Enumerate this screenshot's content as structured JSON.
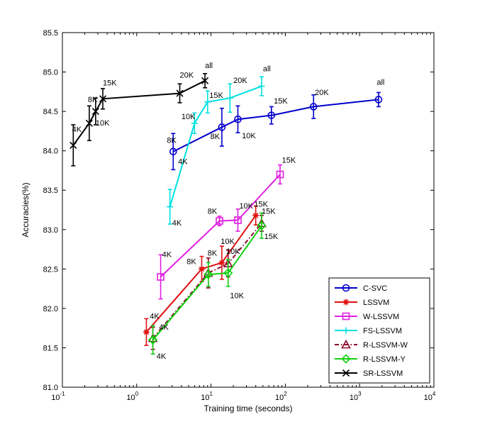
{
  "chart_data": {
    "type": "line",
    "xlabel": "Training time (seconds)",
    "ylabel": "Accuracies(%)",
    "xscale": "log",
    "xlim": [
      0.1,
      10000
    ],
    "ylim": [
      81.0,
      85.5
    ],
    "x_ticks": [
      0.1,
      1,
      10,
      100,
      1000,
      10000
    ],
    "x_tick_labels": [
      {
        "base": "10",
        "exp": "-1"
      },
      {
        "base": "10",
        "exp": "0"
      },
      {
        "base": "10",
        "exp": "1"
      },
      {
        "base": "10",
        "exp": "2"
      },
      {
        "base": "10",
        "exp": "3"
      },
      {
        "base": "10",
        "exp": "4"
      }
    ],
    "y_ticks": [
      81.0,
      81.5,
      82.0,
      82.5,
      83.0,
      83.5,
      84.0,
      84.5,
      85.0,
      85.5
    ],
    "y_tick_labels": [
      "81.0",
      "81.5",
      "82.0",
      "82.5",
      "83.0",
      "83.5",
      "84.0",
      "84.5",
      "85.0",
      "85.5"
    ],
    "grid": false,
    "legend_position": "bottom-right",
    "series": [
      {
        "name": "C-SVC",
        "color": "#0000cc",
        "marker": "circle",
        "dash": "solid",
        "points": [
          {
            "x": 3.1,
            "y": 83.99,
            "err": 0.23
          },
          {
            "x": 14,
            "y": 84.3,
            "err": 0.24
          },
          {
            "x": 23,
            "y": 84.4,
            "err": 0.17
          },
          {
            "x": 65,
            "y": 84.45,
            "err": 0.11
          },
          {
            "x": 240,
            "y": 84.56,
            "err": 0.15
          },
          {
            "x": 1800,
            "y": 84.65,
            "err": 0.09
          }
        ]
      },
      {
        "name": "LSSVM",
        "color": "#e01010",
        "marker": "star",
        "dash": "solid",
        "points": [
          {
            "x": 1.35,
            "y": 81.7,
            "err": 0.17
          },
          {
            "x": 7.5,
            "y": 82.5,
            "err": 0.16
          },
          {
            "x": 14,
            "y": 82.58,
            "err": 0.21
          },
          {
            "x": 40,
            "y": 83.18,
            "err": 0.12
          }
        ]
      },
      {
        "name": "W-LSSVM",
        "color": "#e020e0",
        "marker": "square",
        "dash": "solid",
        "points": [
          {
            "x": 2.1,
            "y": 82.4,
            "err": 0.28
          },
          {
            "x": 13,
            "y": 83.11,
            "err": 0.06
          },
          {
            "x": 23,
            "y": 83.12,
            "err": 0.14
          },
          {
            "x": 85,
            "y": 83.7,
            "err": 0.12
          }
        ]
      },
      {
        "name": "FS-LSSVM",
        "color": "#00e0e0",
        "marker": "plus",
        "dash": "solid",
        "points": [
          {
            "x": 2.8,
            "y": 83.29,
            "err": 0.22
          },
          {
            "x": 6.0,
            "y": 84.35,
            "err": 0.13
          },
          {
            "x": 9.0,
            "y": 84.62,
            "err": 0.14
          },
          {
            "x": 18,
            "y": 84.67,
            "err": 0.18
          },
          {
            "x": 48,
            "y": 84.82,
            "err": 0.12
          }
        ]
      },
      {
        "name": "R-LSSVM-W",
        "color": "#8b0a2a",
        "marker": "triangle",
        "dash": "dashdot",
        "points": [
          {
            "x": 1.65,
            "y": 81.62,
            "err": 0.14
          },
          {
            "x": 9.2,
            "y": 82.45,
            "err": 0.19
          },
          {
            "x": 17,
            "y": 82.57,
            "err": 0.17
          },
          {
            "x": 48,
            "y": 83.08,
            "err": 0.1
          }
        ]
      },
      {
        "name": "R-LSSVM-Y",
        "color": "#10d010",
        "marker": "diamond",
        "dash": "solid",
        "points": [
          {
            "x": 1.65,
            "y": 81.6,
            "err": 0.18
          },
          {
            "x": 9.2,
            "y": 82.43,
            "err": 0.15
          },
          {
            "x": 17,
            "y": 82.45,
            "err": 0.17
          },
          {
            "x": 48,
            "y": 83.05,
            "err": 0.16
          }
        ]
      },
      {
        "name": "SR-LSSVM",
        "color": "#000000",
        "marker": "x",
        "dash": "solid",
        "points": [
          {
            "x": 0.14,
            "y": 84.07,
            "err": 0.26
          },
          {
            "x": 0.23,
            "y": 84.35,
            "err": 0.22
          },
          {
            "x": 0.28,
            "y": 84.5,
            "err": 0.17
          },
          {
            "x": 0.35,
            "y": 84.66,
            "err": 0.13
          },
          {
            "x": 3.8,
            "y": 84.73,
            "err": 0.12
          },
          {
            "x": 8.3,
            "y": 84.89,
            "err": 0.09
          }
        ]
      }
    ],
    "annotations": [
      {
        "text": "all",
        "x": 8.3,
        "y": 85.05,
        "anchor": "start"
      },
      {
        "text": "20K",
        "x": 3.8,
        "y": 84.93,
        "anchor": "start"
      },
      {
        "text": "15K",
        "x": 0.35,
        "y": 84.83,
        "anchor": "start"
      },
      {
        "text": "8K",
        "x": 0.22,
        "y": 84.62,
        "anchor": "start"
      },
      {
        "text": "10K",
        "x": 0.28,
        "y": 84.32,
        "anchor": "start"
      },
      {
        "text": "4K",
        "x": 0.135,
        "y": 84.24,
        "anchor": "start"
      },
      {
        "text": "all",
        "x": 50,
        "y": 85.01,
        "anchor": "start"
      },
      {
        "text": "20K",
        "x": 20,
        "y": 84.86,
        "anchor": "start"
      },
      {
        "text": "15K",
        "x": 9.5,
        "y": 84.67,
        "anchor": "start"
      },
      {
        "text": "10K",
        "x": 4.0,
        "y": 84.4,
        "anchor": "start"
      },
      {
        "text": "8K",
        "x": 2.55,
        "y": 84.1,
        "anchor": "start"
      },
      {
        "text": "4K",
        "x": 3.0,
        "y": 83.05,
        "anchor": "start"
      },
      {
        "text": "all",
        "x": 1700,
        "y": 84.84,
        "anchor": "start"
      },
      {
        "text": "20K",
        "x": 250,
        "y": 84.71,
        "anchor": "start"
      },
      {
        "text": "15K",
        "x": 70,
        "y": 84.6,
        "anchor": "start"
      },
      {
        "text": "10K",
        "x": 26,
        "y": 84.16,
        "anchor": "start"
      },
      {
        "text": "8K",
        "x": 9.8,
        "y": 84.15,
        "anchor": "start"
      },
      {
        "text": "4K",
        "x": 3.6,
        "y": 83.83,
        "anchor": "start"
      },
      {
        "text": "15K",
        "x": 90,
        "y": 83.85,
        "anchor": "start"
      },
      {
        "text": "10K",
        "x": 24,
        "y": 83.27,
        "anchor": "start"
      },
      {
        "text": "8K",
        "x": 9.0,
        "y": 83.2,
        "anchor": "start"
      },
      {
        "text": "4K",
        "x": 2.2,
        "y": 82.65,
        "anchor": "start"
      },
      {
        "text": "15K",
        "x": 38,
        "y": 83.29,
        "anchor": "start"
      },
      {
        "text": "15K",
        "x": 48,
        "y": 83.2,
        "anchor": "start"
      },
      {
        "text": "10K",
        "x": 13.5,
        "y": 82.82,
        "anchor": "start"
      },
      {
        "text": "10K",
        "x": 16,
        "y": 82.69,
        "anchor": "start"
      },
      {
        "text": "8K",
        "x": 9.0,
        "y": 82.67,
        "anchor": "start"
      },
      {
        "text": "8K",
        "x": 4.7,
        "y": 82.56,
        "anchor": "start"
      },
      {
        "text": "10K",
        "x": 18,
        "y": 82.13,
        "anchor": "start"
      },
      {
        "text": "15K",
        "x": 52,
        "y": 82.88,
        "anchor": "start"
      },
      {
        "text": "4K",
        "x": 1.5,
        "y": 81.87,
        "anchor": "start"
      },
      {
        "text": "4K",
        "x": 2.0,
        "y": 81.73,
        "anchor": "start"
      },
      {
        "text": "4K",
        "x": 1.85,
        "y": 81.36,
        "anchor": "start"
      }
    ]
  }
}
